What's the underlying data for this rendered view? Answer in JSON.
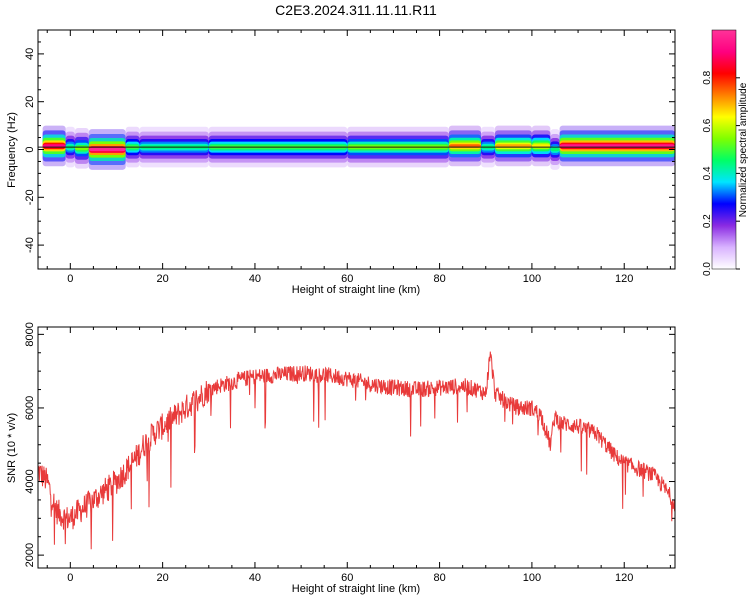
{
  "title": "C2E3.2024.311.11.11.R11",
  "chart_data": [
    {
      "type": "heatmap",
      "xlabel": "Height of straight line (km)",
      "ylabel": "Frequency (Hz)",
      "xlim": [
        -7,
        131
      ],
      "ylim": [
        -50,
        50
      ],
      "x_ticks": [
        0,
        20,
        40,
        60,
        80,
        100,
        120
      ],
      "y_ticks": [
        40,
        20,
        0,
        -20,
        -40
      ],
      "colorbar": {
        "label": "Normalized spectral amplitude",
        "range": [
          0,
          1
        ],
        "ticks": [
          0.0,
          0.2,
          0.4,
          0.6,
          0.8
        ],
        "colors": [
          "#ffffff",
          "#d9b3ff",
          "#8a2be2",
          "#0000ff",
          "#00e5ff",
          "#00ff66",
          "#7fff00",
          "#ffff00",
          "#ff8000",
          "#ff0000",
          "#ff0080",
          "#ff3399"
        ]
      },
      "band": {
        "center_frequency": 1,
        "segments": [
          {
            "x0": -6,
            "x1": -1,
            "center": 1.5,
            "peak": 0.92
          },
          {
            "x0": -1,
            "x1": 1,
            "center": 1,
            "peak": 0.45
          },
          {
            "x0": 1,
            "x1": 4,
            "center": 0.5,
            "peak": 0.55
          },
          {
            "x0": 4,
            "x1": 12,
            "center": 0,
            "peak": 0.98
          },
          {
            "x0": 12,
            "x1": 15,
            "center": 1,
            "peak": 0.5
          },
          {
            "x0": 15,
            "x1": 30,
            "center": 1,
            "peak": 0.45
          },
          {
            "x0": 30,
            "x1": 60,
            "center": 1,
            "peak": 0.5
          },
          {
            "x0": 60,
            "x1": 82,
            "center": 1,
            "peak": 0.55
          },
          {
            "x0": 82,
            "x1": 89,
            "center": 1.5,
            "peak": 0.75
          },
          {
            "x0": 89,
            "x1": 92,
            "center": 1,
            "peak": 0.45
          },
          {
            "x0": 92,
            "x1": 100,
            "center": 1.5,
            "peak": 0.7
          },
          {
            "x0": 100,
            "x1": 104,
            "center": 1.5,
            "peak": 0.65
          },
          {
            "x0": 104,
            "x1": 106,
            "center": 0,
            "peak": 0.45
          },
          {
            "x0": 106,
            "x1": 131,
            "center": 1.5,
            "peak": 0.95
          }
        ]
      }
    },
    {
      "type": "line",
      "xlabel": "Height of straight line (km)",
      "ylabel": "SNR (10 * v/v)",
      "xlim": [
        -7,
        131
      ],
      "ylim": [
        1650,
        8200
      ],
      "x_ticks": [
        0,
        20,
        40,
        60,
        80,
        100,
        120
      ],
      "y_ticks": [
        8000,
        6000,
        4000,
        2000
      ],
      "line_color": "#e83a3a",
      "envelope": {
        "x": [
          -7,
          -5,
          -3,
          -1,
          0,
          2,
          4,
          6,
          8,
          10,
          12,
          14,
          16,
          18,
          20,
          22,
          25,
          28,
          30,
          32,
          35,
          38,
          40,
          45,
          50,
          55,
          60,
          65,
          70,
          75,
          80,
          85,
          88,
          90,
          91,
          92,
          94,
          96,
          98,
          100,
          102,
          104,
          105,
          106,
          108,
          110,
          112,
          114,
          116,
          118,
          120,
          122,
          124,
          126,
          128,
          130,
          131
        ],
        "y": [
          4300,
          4000,
          3200,
          3000,
          3000,
          3200,
          3400,
          3600,
          3800,
          4000,
          4300,
          4600,
          5000,
          5300,
          5500,
          5700,
          6000,
          6300,
          6500,
          6600,
          6700,
          6800,
          6850,
          6900,
          6950,
          6900,
          6800,
          6650,
          6550,
          6500,
          6550,
          6600,
          6500,
          6400,
          7500,
          6400,
          6200,
          6050,
          6000,
          6000,
          5800,
          5000,
          5800,
          5600,
          5550,
          5500,
          5400,
          5300,
          5000,
          4700,
          4500,
          4400,
          4300,
          4200,
          3950,
          3600,
          3400
        ]
      },
      "noise_amplitude": 450
    }
  ]
}
